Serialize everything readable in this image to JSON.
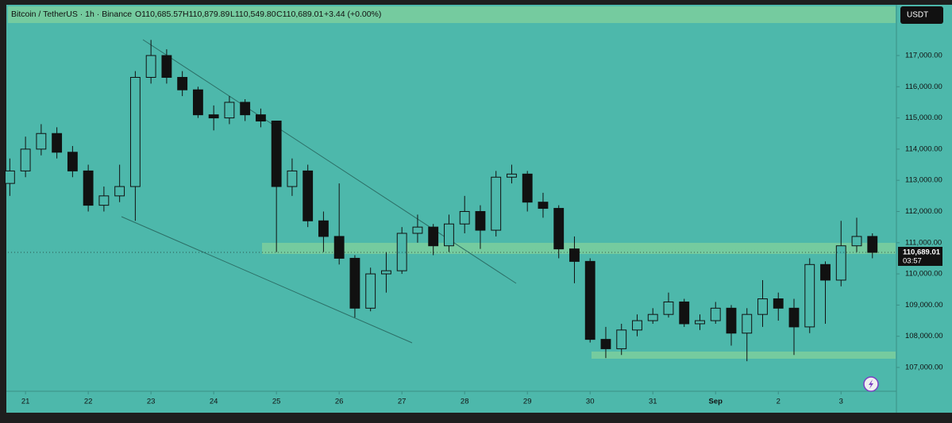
{
  "chart_data": {
    "type": "candlestick",
    "symbol": "Bitcoin / TetherUS · 1h · Binance",
    "ohlc_text": [
      "O110,685.57",
      "H110,879.89",
      "L110,549.80",
      "C110,689.01"
    ],
    "change_text": "+3.44 (+0.00%)",
    "currency": "USDT",
    "countdown": "03:57",
    "last_price": {
      "value": 110689.01,
      "label": "110,689.01"
    },
    "color": "#111111",
    "x": [
      -0.25,
      0,
      0.25,
      0.5,
      0.75,
      1,
      1.25,
      1.5,
      1.75,
      2,
      2.25,
      2.5,
      2.75,
      3,
      3.25,
      3.5,
      3.75,
      4,
      4.25,
      4.5,
      4.75,
      5,
      5.25,
      5.5,
      5.75,
      6,
      6.25,
      6.5,
      6.75,
      7,
      7.25,
      7.5,
      7.75,
      8,
      8.25,
      8.5,
      8.75,
      9,
      9.25,
      9.5,
      9.75,
      10,
      10.25,
      10.5,
      10.75,
      11,
      11.25,
      11.5,
      11.75,
      12,
      12.25,
      12.5,
      12.75,
      13,
      13.25,
      13.5
    ],
    "open": [
      112900,
      113300,
      114000,
      114500,
      113900,
      113300,
      112200,
      112500,
      112800,
      116300,
      117000,
      116300,
      115900,
      115100,
      115000,
      115500,
      115100,
      114900,
      112800,
      113300,
      111700,
      111200,
      110500,
      108900,
      110000,
      110100,
      111300,
      111500,
      110900,
      111600,
      112000,
      111400,
      113100,
      113200,
      112300,
      112100,
      110800,
      110400,
      107900,
      107600,
      108200,
      108500,
      108700,
      109100,
      108400,
      108500,
      108900,
      108100,
      108700,
      109200,
      108900,
      108300,
      110300,
      109800,
      110900,
      111200
    ],
    "high": [
      113700,
      114400,
      114800,
      114700,
      114100,
      113500,
      112800,
      113500,
      116500,
      117500,
      117200,
      116500,
      116000,
      115400,
      115700,
      115600,
      115300,
      114900,
      113700,
      113500,
      112000,
      112900,
      110600,
      110200,
      110700,
      111500,
      111900,
      111600,
      111900,
      112500,
      112200,
      113300,
      113500,
      113300,
      112600,
      112200,
      111200,
      110500,
      108300,
      108400,
      108700,
      108900,
      109400,
      109200,
      108700,
      109100,
      109000,
      108900,
      109800,
      109400,
      109200,
      110500,
      110400,
      111700,
      111800,
      111300
    ],
    "low": [
      112500,
      113100,
      113800,
      113700,
      113100,
      112000,
      112000,
      112300,
      111700,
      116100,
      116100,
      115700,
      115000,
      114600,
      114800,
      114900,
      114700,
      110700,
      112500,
      111500,
      110700,
      110300,
      108600,
      108800,
      109400,
      110000,
      111000,
      110600,
      110700,
      111300,
      110800,
      111200,
      112900,
      112000,
      111800,
      110500,
      109700,
      107800,
      107300,
      107400,
      108000,
      108400,
      108600,
      108300,
      108200,
      108400,
      107700,
      107200,
      108300,
      108500,
      107400,
      108100,
      108400,
      109600,
      110700,
      110500
    ],
    "close": [
      113300,
      114000,
      114500,
      113900,
      113300,
      112200,
      112500,
      112800,
      116300,
      117000,
      116300,
      115900,
      115100,
      115000,
      115500,
      115100,
      114900,
      112800,
      113300,
      111700,
      111200,
      110500,
      108900,
      110000,
      110100,
      111300,
      111500,
      110900,
      111600,
      112000,
      111400,
      113100,
      113200,
      112300,
      112100,
      110800,
      110400,
      107900,
      107600,
      108200,
      108500,
      108700,
      109100,
      108400,
      108500,
      108900,
      108100,
      108700,
      109200,
      108900,
      108300,
      110300,
      109800,
      110900,
      111200,
      110689.01
    ],
    "xlim": [
      -0.28,
      13.87
    ],
    "xticks": [
      {
        "value": 0,
        "label": "21"
      },
      {
        "value": 1,
        "label": "22"
      },
      {
        "value": 2,
        "label": "23"
      },
      {
        "value": 3,
        "label": "24"
      },
      {
        "value": 4,
        "label": "25"
      },
      {
        "value": 5,
        "label": "26"
      },
      {
        "value": 6,
        "label": "27"
      },
      {
        "value": 7,
        "label": "28"
      },
      {
        "value": 8,
        "label": "29"
      },
      {
        "value": 9,
        "label": "30"
      },
      {
        "value": 10,
        "label": "31"
      },
      {
        "value": 11,
        "label": "Sep"
      },
      {
        "value": 12,
        "label": "2"
      },
      {
        "value": 13,
        "label": "3"
      }
    ],
    "ylim": [
      106262,
      118577
    ],
    "yticks": [
      {
        "value": 107000,
        "label": "107,000.00"
      },
      {
        "value": 108000,
        "label": "108,000.00"
      },
      {
        "value": 109000,
        "label": "109,000.00"
      },
      {
        "value": 110000,
        "label": "110,000.00"
      },
      {
        "value": 111000,
        "label": "111,000.00"
      },
      {
        "value": 112000,
        "label": "112,000.00"
      },
      {
        "value": 113000,
        "label": "113,000.00"
      },
      {
        "value": 114000,
        "label": "114,000.00"
      },
      {
        "value": 115000,
        "label": "115,000.00"
      },
      {
        "value": 116000,
        "label": "116,000.00"
      },
      {
        "value": 117000,
        "label": "117,000.00"
      }
    ]
  }
}
